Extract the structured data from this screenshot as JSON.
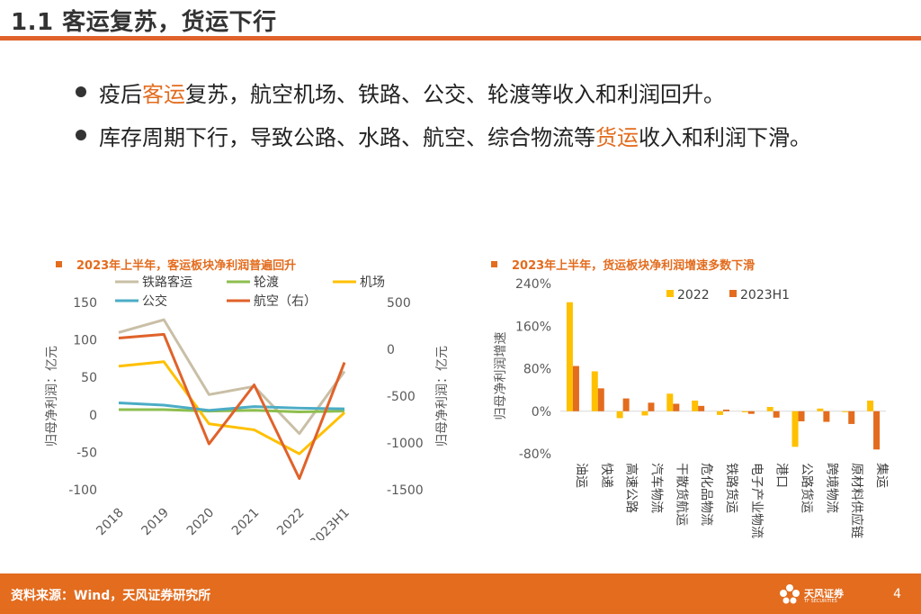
{
  "header": {
    "title": "1.1 客运复苏，货运下行"
  },
  "bullets": [
    {
      "pre": "疫后",
      "hl": "客运",
      "post": "复苏，航空机场、铁路、公交、轮渡等收入和利润回升。"
    },
    {
      "pre": "库存周期下行，导致公路、水路、航空、综合物流等",
      "hl": "货运",
      "post": "收入和利润下滑。"
    }
  ],
  "colors": {
    "accent": "#E36C1E",
    "bar_2022": "#FFC000",
    "bar_2023": "#E36C1E"
  },
  "chart_data": [
    {
      "type": "line",
      "title": "2023年上半年，客运板块净利润普遍回升",
      "x": [
        "2018",
        "2019",
        "2020",
        "2021",
        "2022",
        "2023H1"
      ],
      "ylabel": "归母净利润：亿元",
      "ylabel_right": "归母净利润：亿元",
      "ylim": [
        -100,
        150
      ],
      "y_ticks": [
        "150",
        "100",
        "50",
        "0",
        "-50",
        "-100"
      ],
      "ylim_right": [
        -1500,
        500
      ],
      "y_ticks_right": [
        "500",
        "0",
        "-500",
        "-1000",
        "-1500"
      ],
      "legend": "top",
      "series": [
        {
          "name": "铁路客运",
          "color": "#C9BFA6",
          "axis": "left",
          "values": [
            110,
            127,
            27,
            38,
            -25,
            58
          ]
        },
        {
          "name": "轮渡",
          "color": "#8DBE4E",
          "axis": "left",
          "values": [
            7,
            7,
            5,
            6,
            4,
            5
          ]
        },
        {
          "name": "机场",
          "color": "#FFC000",
          "axis": "left",
          "values": [
            65,
            71,
            -12,
            -20,
            -52,
            3
          ]
        },
        {
          "name": "公交",
          "color": "#4BACC6",
          "axis": "left",
          "values": [
            16,
            13,
            6,
            11,
            9,
            8
          ]
        },
        {
          "name": "航空（右）",
          "color": "#E0622A",
          "axis": "right",
          "values": [
            120,
            160,
            -1010,
            -380,
            -1380,
            -140
          ]
        }
      ]
    },
    {
      "type": "bar",
      "title": "2023年上半年，货运板块净利润增速多数下滑",
      "ylabel": "归母净利润增速",
      "ylim": [
        -80,
        240
      ],
      "y_ticks": [
        "240%",
        "160%",
        "80%",
        "0%",
        "-80%"
      ],
      "legend": "top-right",
      "categories": [
        "油运",
        "快递",
        "高速公路",
        "汽车物流",
        "干散货航运",
        "危化品物流",
        "铁路货运",
        "电子产业物流",
        "港口",
        "公路货运",
        "跨境物流",
        "原材料供应链",
        "集运"
      ],
      "series": [
        {
          "name": "2022",
          "values": [
            205,
            75,
            -13,
            -8,
            33,
            20,
            -7,
            -2,
            8,
            -67,
            5,
            -1,
            20
          ]
        },
        {
          "name": "2023H1",
          "values": [
            85,
            43,
            24,
            16,
            14,
            10,
            3,
            -5,
            -12,
            -19,
            -20,
            -24,
            -72
          ]
        }
      ]
    }
  ],
  "footer": {
    "source": "资料来源：Wind，天风证券研究所",
    "logo_cn": "天风证券",
    "logo_en": "TF SECURITIES",
    "page": "4"
  }
}
